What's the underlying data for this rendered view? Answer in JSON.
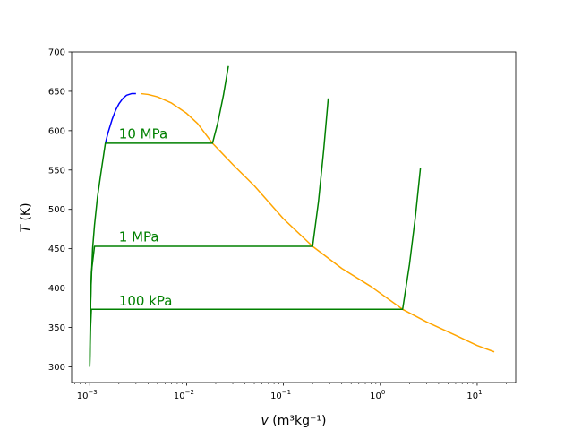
{
  "chart_data": {
    "type": "line",
    "title": "",
    "xlabel": {
      "var": "v",
      "rest": " (m³kg⁻¹)"
    },
    "ylabel": {
      "var": "T",
      "rest": " (K)"
    },
    "xscale": "log",
    "xlim": [
      0.00065,
      25
    ],
    "ylim": [
      280,
      700
    ],
    "x_ticks": [
      {
        "value": 0.001,
        "base": "10",
        "exp": "−3"
      },
      {
        "value": 0.01,
        "base": "10",
        "exp": "−2"
      },
      {
        "value": 0.1,
        "base": "10",
        "exp": "−1"
      },
      {
        "value": 1,
        "base": "10",
        "exp": "0"
      },
      {
        "value": 10,
        "base": "10",
        "exp": "1"
      }
    ],
    "y_ticks": [
      {
        "value": 300,
        "label": "300"
      },
      {
        "value": 350,
        "label": "350"
      },
      {
        "value": 400,
        "label": "400"
      },
      {
        "value": 450,
        "label": "450"
      },
      {
        "value": 500,
        "label": "500"
      },
      {
        "value": 550,
        "label": "550"
      },
      {
        "value": 600,
        "label": "600"
      },
      {
        "value": 650,
        "label": "650"
      },
      {
        "value": 700,
        "label": "700"
      }
    ],
    "colors": {
      "liquid": "#0000ff",
      "vapor": "#ffa500",
      "isobar": "#008000",
      "axis": "#000000"
    },
    "series": [
      {
        "name": "saturated-liquid",
        "color": "#0000ff",
        "x": [
          0.00145,
          0.00155,
          0.0017,
          0.00185,
          0.002,
          0.0022,
          0.0024,
          0.0027,
          0.003
        ],
        "y": [
          584,
          598,
          614,
          626,
          634,
          641,
          645,
          647,
          647
        ]
      },
      {
        "name": "saturated-vapor",
        "color": "#ffa500",
        "x": [
          0.0034,
          0.004,
          0.005,
          0.007,
          0.01,
          0.013,
          0.0185,
          0.03,
          0.05,
          0.1,
          0.2,
          0.4,
          0.8,
          1.7,
          3,
          6,
          10,
          15
        ],
        "y": [
          647,
          646,
          643,
          635,
          622,
          609,
          584,
          557,
          530,
          488,
          453,
          425,
          402,
          373,
          357,
          340,
          327,
          319
        ]
      },
      {
        "name": "isobar-10MPa",
        "label": "10 MPa",
        "label_at": {
          "x": 0.002,
          "y": 590
        },
        "color": "#008000",
        "x": [
          0.001,
          0.00101,
          0.00103,
          0.00107,
          0.00112,
          0.0012,
          0.0013,
          0.00145,
          0.0185,
          0.021,
          0.024,
          0.027
        ],
        "y": [
          300,
          350,
          400,
          450,
          480,
          515,
          545,
          584,
          584,
          610,
          645,
          682
        ]
      },
      {
        "name": "isobar-1MPa",
        "label": "1 MPa",
        "label_at": {
          "x": 0.002,
          "y": 459
        },
        "color": "#008000",
        "x": [
          0.001,
          0.00102,
          0.00104,
          0.00112,
          0.2,
          0.23,
          0.26,
          0.29
        ],
        "y": [
          300,
          380,
          420,
          453,
          453,
          510,
          575,
          641
        ]
      },
      {
        "name": "isobar-100kPa",
        "label": "100 kPa",
        "label_at": {
          "x": 0.002,
          "y": 378
        },
        "color": "#008000",
        "x": [
          0.001,
          0.00102,
          0.00104,
          1.7,
          2.0,
          2.3,
          2.6
        ],
        "y": [
          300,
          350,
          373,
          373,
          430,
          490,
          553
        ]
      }
    ]
  }
}
